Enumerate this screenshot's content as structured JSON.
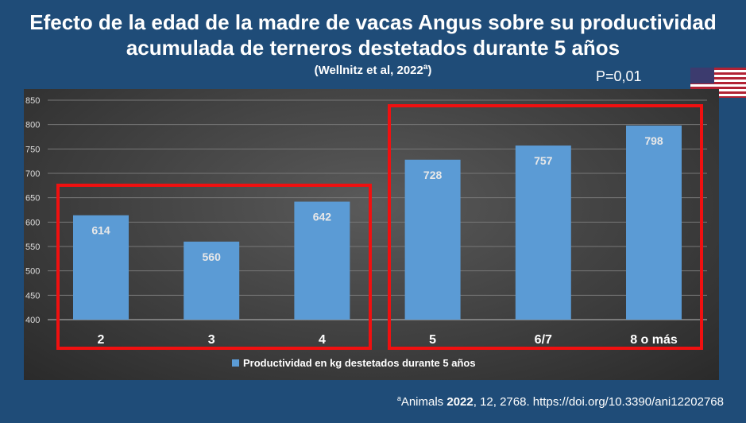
{
  "title_line1": "Efecto de la edad de la madre de vacas Angus sobre su productividad",
  "title_line2": "acumulada de terneros destetados durante 5 años",
  "citation": "(Wellnitz et al, 2022",
  "citation_sup": "a",
  "p_value": "P=0,01",
  "footnote": {
    "sup": "a",
    "journal": "Animals ",
    "year": "2022",
    "rest": ", 12, 2768. https://doi.org/10.3390/ani12202768"
  },
  "chart_data": {
    "type": "bar",
    "categories": [
      "2",
      "3",
      "4",
      "5",
      "6/7",
      "8 o más"
    ],
    "series": [
      {
        "name": "Productividad en kg destetados durante 5 años",
        "values": [
          614,
          560,
          642,
          728,
          757,
          798
        ]
      }
    ],
    "ylim": [
      400,
      850
    ],
    "yticks": [
      400,
      450,
      500,
      550,
      600,
      650,
      700,
      750,
      800,
      850
    ],
    "grid": true,
    "legend": "bottom",
    "bar_color": "#5b9bd5"
  }
}
